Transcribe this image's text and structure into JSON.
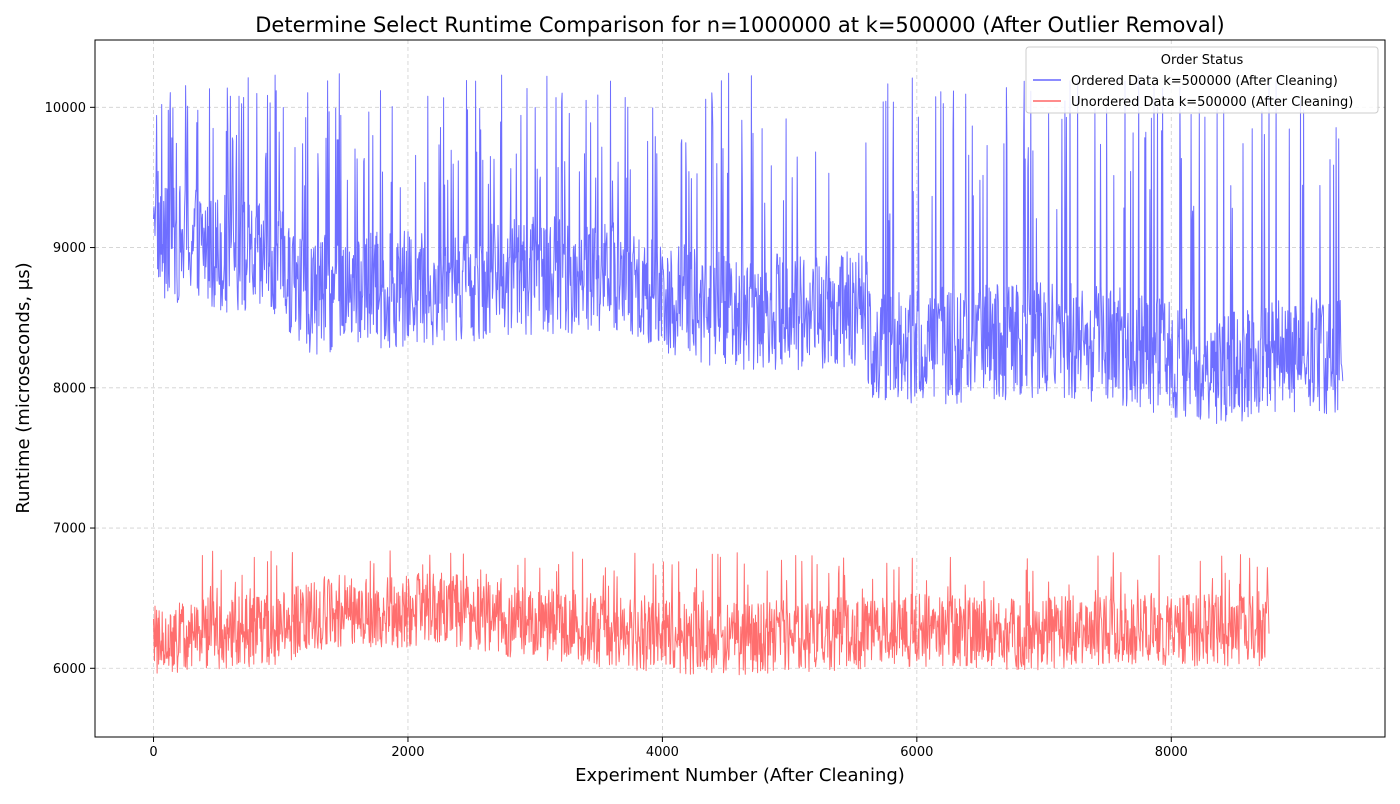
{
  "chart_data": {
    "type": "line",
    "title": "Determine Select Runtime Comparison for n=1000000 at k=500000 (After Outlier Removal)",
    "xlabel": "Experiment Number (After Cleaning)",
    "ylabel": "Runtime (microseconds, μs)",
    "xlim": [
      -460,
      9680
    ],
    "ylim": [
      5510,
      10480
    ],
    "x_ticks": [
      0,
      2000,
      4000,
      6000,
      8000
    ],
    "x_tick_labels": [
      "0",
      "2000",
      "4000",
      "6000",
      "8000"
    ],
    "y_ticks": [
      6000,
      7000,
      8000,
      9000,
      10000
    ],
    "y_tick_labels": [
      "6000",
      "7000",
      "8000",
      "9000",
      "10000"
    ],
    "grid": true,
    "legend": {
      "title": "Order Status",
      "placement": "top-right"
    },
    "series": [
      {
        "name": "Ordered Data k=500000 (After Cleaning)",
        "color": "#6666ff",
        "x_start": 0,
        "x_end": 9350,
        "noise_half_range": 420,
        "max": 10250,
        "min": 7620,
        "spike_peak": 10250,
        "spike_probability": 0.1,
        "baseline": [
          [
            0,
            9450
          ],
          [
            60,
            9000
          ],
          [
            300,
            9050
          ],
          [
            600,
            8950
          ],
          [
            1000,
            8850
          ],
          [
            1200,
            8650
          ],
          [
            1600,
            8700
          ],
          [
            2000,
            8700
          ],
          [
            2500,
            8750
          ],
          [
            3000,
            8800
          ],
          [
            3500,
            8800
          ],
          [
            3900,
            8700
          ],
          [
            4200,
            8600
          ],
          [
            4600,
            8550
          ],
          [
            5000,
            8550
          ],
          [
            5600,
            8550
          ],
          [
            5650,
            8300
          ],
          [
            6200,
            8300
          ],
          [
            7000,
            8350
          ],
          [
            7600,
            8300
          ],
          [
            8000,
            8200
          ],
          [
            8500,
            8150
          ],
          [
            9000,
            8250
          ],
          [
            9350,
            8200
          ]
        ]
      },
      {
        "name": "Unordered Data k=500000 (After Cleaning)",
        "color": "#ff6666",
        "x_start": 0,
        "x_end": 8770,
        "noise_half_range": 260,
        "max": 6860,
        "min": 5740,
        "spike_peak": 6850,
        "spike_probability": 0.05,
        "baseline": [
          [
            0,
            6200
          ],
          [
            500,
            6250
          ],
          [
            1000,
            6280
          ],
          [
            1200,
            6350
          ],
          [
            1500,
            6420
          ],
          [
            1900,
            6400
          ],
          [
            2200,
            6430
          ],
          [
            2600,
            6380
          ],
          [
            3000,
            6300
          ],
          [
            3500,
            6270
          ],
          [
            4000,
            6230
          ],
          [
            4500,
            6200
          ],
          [
            5000,
            6230
          ],
          [
            5500,
            6250
          ],
          [
            6000,
            6270
          ],
          [
            6500,
            6250
          ],
          [
            7000,
            6250
          ],
          [
            7500,
            6270
          ],
          [
            8000,
            6280
          ],
          [
            8500,
            6270
          ],
          [
            8770,
            6270
          ]
        ]
      }
    ]
  }
}
